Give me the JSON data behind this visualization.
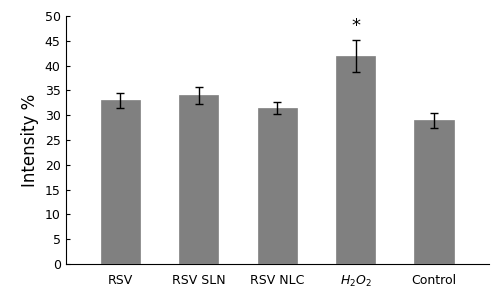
{
  "categories": [
    "RSV",
    "RSV SLN",
    "RSV NLC",
    "H$_2$O$_2$",
    "Control"
  ],
  "values": [
    33.0,
    34.0,
    31.5,
    42.0,
    29.0
  ],
  "errors": [
    1.5,
    1.8,
    1.2,
    3.2,
    1.5
  ],
  "bar_color": "#808080",
  "bar_edge_color": "#808080",
  "ylabel": "Intensity %",
  "ylim": [
    0,
    50
  ],
  "yticks": [
    0,
    5,
    10,
    15,
    20,
    25,
    30,
    35,
    40,
    45,
    50
  ],
  "star_label": "*",
  "star_index": 3,
  "background_color": "#ffffff",
  "bar_width": 0.5,
  "error_capsize": 3,
  "ylabel_fontsize": 12,
  "tick_fontsize": 9,
  "star_fontsize": 13
}
